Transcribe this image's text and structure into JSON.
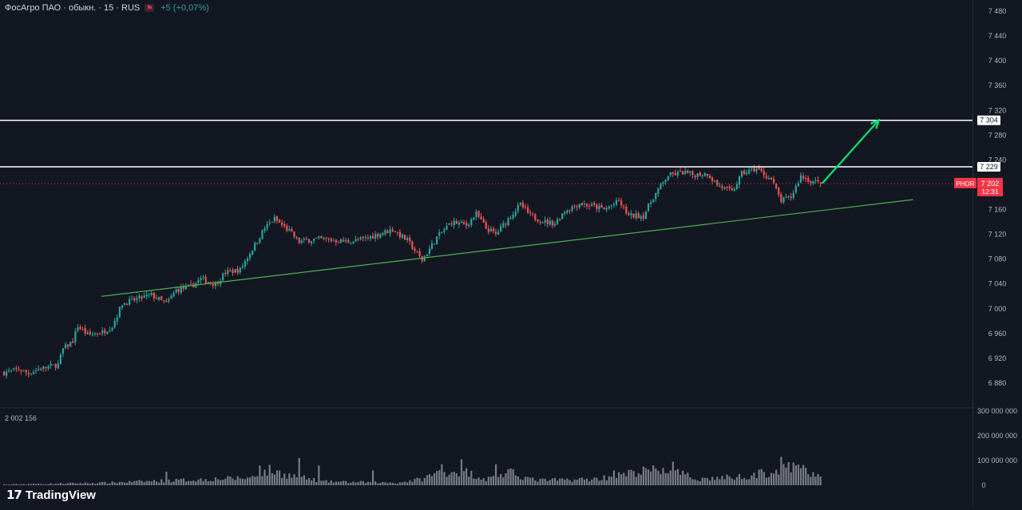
{
  "legend": {
    "symbol_title": "ФосАгро ПАО · обыкн. · 15 · RUS",
    "change": "+5 (+0,07%)"
  },
  "colors": {
    "background": "#131722",
    "up": "#26a69a",
    "down": "#ef5350",
    "level_line": "#ffffff",
    "trendline": "#4caf50",
    "arrow": "#00e676",
    "badge_price": "#f23645",
    "badge_level_bg": "#ffffff"
  },
  "icons": [
    "tradingview-logo-icon",
    "flag-icon"
  ],
  "brand": {
    "logo_icon": "17",
    "name": "TradingView"
  },
  "chart_data": {
    "type": "candlestick",
    "price_axis": {
      "ticks": [
        "7 480",
        "7 440",
        "7 400",
        "7 360",
        "7 320",
        "7 280",
        "7 240",
        "7 160",
        "7 120",
        "7 080",
        "7 040",
        "7 000",
        "6 960",
        "6 920",
        "6 880"
      ],
      "tick_values": [
        7480,
        7440,
        7400,
        7360,
        7320,
        7280,
        7240,
        7160,
        7120,
        7080,
        7040,
        7000,
        6960,
        6920,
        6880
      ],
      "range": [
        6850,
        7490
      ]
    },
    "volume_axis": {
      "ticks": [
        "300 000 000",
        "200 000 000",
        "100 000 000",
        "0"
      ],
      "tick_values": [
        300000000,
        200000000,
        100000000,
        0
      ],
      "range": [
        0,
        300000000
      ],
      "label": "2 002 156"
    },
    "levels": [
      {
        "label": "7 304",
        "value": 7304
      },
      {
        "label": "7 229",
        "value": 7229
      }
    ],
    "current": {
      "ticker": "PHOR",
      "price_label": "7 202",
      "price": 7202,
      "timer": "12:31"
    },
    "trendline": {
      "from": [
        40,
        7020
      ],
      "to": [
        370,
        7176
      ]
    },
    "arrow": {
      "from": [
        333,
        7202
      ],
      "to": [
        356,
        7304
      ]
    },
    "grid": false,
    "anchors": [
      [
        0,
        6897
      ],
      [
        6,
        6902
      ],
      [
        10,
        6896
      ],
      [
        14,
        6903
      ],
      [
        18,
        6906
      ],
      [
        22,
        6910
      ],
      [
        24,
        6935
      ],
      [
        28,
        6948
      ],
      [
        30,
        6972
      ],
      [
        34,
        6958
      ],
      [
        40,
        6962
      ],
      [
        44,
        6972
      ],
      [
        48,
        7008
      ],
      [
        52,
        7013
      ],
      [
        56,
        7018
      ],
      [
        60,
        7022
      ],
      [
        66,
        7008
      ],
      [
        70,
        7030
      ],
      [
        76,
        7036
      ],
      [
        80,
        7048
      ],
      [
        86,
        7040
      ],
      [
        90,
        7058
      ],
      [
        96,
        7063
      ],
      [
        100,
        7090
      ],
      [
        106,
        7130
      ],
      [
        110,
        7145
      ],
      [
        116,
        7125
      ],
      [
        120,
        7108
      ],
      [
        126,
        7112
      ],
      [
        130,
        7112
      ],
      [
        140,
        7108
      ],
      [
        146,
        7112
      ],
      [
        152,
        7120
      ],
      [
        158,
        7128
      ],
      [
        164,
        7110
      ],
      [
        170,
        7078
      ],
      [
        176,
        7115
      ],
      [
        182,
        7140
      ],
      [
        188,
        7135
      ],
      [
        192,
        7153
      ],
      [
        196,
        7130
      ],
      [
        200,
        7120
      ],
      [
        206,
        7150
      ],
      [
        210,
        7168
      ],
      [
        214,
        7150
      ],
      [
        220,
        7140
      ],
      [
        224,
        7138
      ],
      [
        228,
        7158
      ],
      [
        234,
        7170
      ],
      [
        240,
        7165
      ],
      [
        244,
        7160
      ],
      [
        250,
        7173
      ],
      [
        254,
        7150
      ],
      [
        260,
        7150
      ],
      [
        264,
        7180
      ],
      [
        270,
        7215
      ],
      [
        276,
        7220
      ],
      [
        280,
        7216
      ],
      [
        286,
        7218
      ],
      [
        290,
        7200
      ],
      [
        296,
        7188
      ],
      [
        300,
        7218
      ],
      [
        306,
        7226
      ],
      [
        312,
        7208
      ],
      [
        316,
        7174
      ],
      [
        320,
        7180
      ],
      [
        324,
        7214
      ],
      [
        328,
        7206
      ],
      [
        332,
        7202
      ]
    ],
    "volume_anchors": [
      [
        0,
        3000000
      ],
      [
        40,
        10000000
      ],
      [
        100,
        30000000
      ],
      [
        108,
        60000000
      ],
      [
        116,
        40000000
      ],
      [
        130,
        15000000
      ],
      [
        160,
        10000000
      ],
      [
        170,
        25000000
      ],
      [
        176,
        50000000
      ],
      [
        186,
        60000000
      ],
      [
        196,
        25000000
      ],
      [
        206,
        50000000
      ],
      [
        216,
        20000000
      ],
      [
        240,
        25000000
      ],
      [
        250,
        40000000
      ],
      [
        262,
        60000000
      ],
      [
        270,
        60000000
      ],
      [
        282,
        25000000
      ],
      [
        300,
        35000000
      ],
      [
        316,
        60000000
      ],
      [
        322,
        75000000
      ],
      [
        332,
        30000000
      ]
    ],
    "volume_spikes": [
      [
        66,
        55000000
      ],
      [
        104,
        80000000
      ],
      [
        120,
        110000000
      ],
      [
        128,
        80000000
      ],
      [
        150,
        60000000
      ],
      [
        178,
        85000000
      ],
      [
        186,
        105000000
      ],
      [
        200,
        85000000
      ],
      [
        248,
        60000000
      ],
      [
        268,
        70000000
      ],
      [
        272,
        95000000
      ],
      [
        316,
        115000000
      ],
      [
        322,
        80000000
      ],
      [
        326,
        70000000
      ]
    ]
  }
}
